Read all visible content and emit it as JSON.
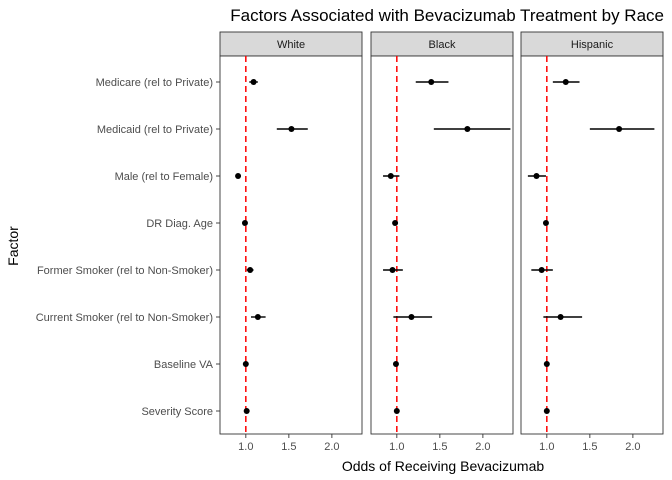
{
  "chart_data": {
    "type": "forest",
    "title": "Factors Associated with Bevacizumab Treatment by Race",
    "xlabel": "Odds of Receiving Bevacizumab",
    "ylabel": "Factor",
    "xlim": [
      0.7,
      2.35
    ],
    "xticks": [
      1.0,
      1.5,
      2.0
    ],
    "xtick_labels": [
      "1.0",
      "1.5",
      "2.0"
    ],
    "reference_line": 1.0,
    "reference_line_color": "#ff0000",
    "grid": false,
    "factors": [
      "Medicare (rel to Private)",
      "Medicaid (rel to Private)",
      "Male (rel to Female)",
      "DR Diag. Age",
      "Former Smoker (rel to Non-Smoker)",
      "Current Smoker (rel to Non-Smoker)",
      "Baseline VA",
      "Severity Score"
    ],
    "panels": [
      {
        "name": "White",
        "estimates": [
          1.09,
          1.53,
          0.91,
          0.99,
          1.05,
          1.14,
          1.0,
          1.01
        ],
        "lower": [
          1.04,
          1.36,
          0.89,
          0.98,
          1.01,
          1.06,
          0.99,
          1.0
        ],
        "upper": [
          1.14,
          1.72,
          0.93,
          1.0,
          1.09,
          1.23,
          1.01,
          1.02
        ]
      },
      {
        "name": "Black",
        "estimates": [
          1.4,
          1.82,
          0.93,
          0.98,
          0.95,
          1.17,
          0.99,
          1.0
        ],
        "lower": [
          1.22,
          1.43,
          0.84,
          0.97,
          0.84,
          0.96,
          0.98,
          0.99
        ],
        "upper": [
          1.6,
          2.32,
          1.03,
          0.99,
          1.07,
          1.41,
          1.0,
          1.01
        ]
      },
      {
        "name": "Hispanic",
        "estimates": [
          1.22,
          1.84,
          0.88,
          0.99,
          0.94,
          1.16,
          1.0,
          1.0
        ],
        "lower": [
          1.07,
          1.5,
          0.78,
          0.98,
          0.82,
          0.96,
          0.99,
          0.99
        ],
        "upper": [
          1.38,
          2.25,
          0.99,
          1.0,
          1.07,
          1.41,
          1.01,
          1.01
        ]
      }
    ]
  }
}
